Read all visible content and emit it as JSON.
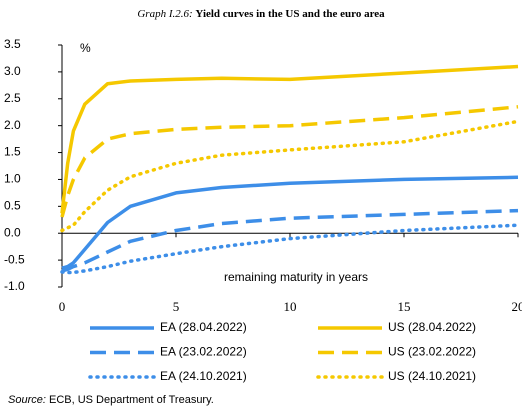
{
  "chart_data": {
    "type": "line",
    "title_label": "Graph I.2.6:",
    "title": "Yield curves in the US and the euro area",
    "y_unit": "%",
    "x_label": "remaining maturity in years",
    "source_label": "Source:",
    "source": "ECB, US Department of Treasury.",
    "x": [
      0,
      0.25,
      0.5,
      1,
      2,
      3,
      5,
      7,
      10,
      15,
      20
    ],
    "xlim": [
      0,
      20
    ],
    "xticks": [
      0,
      5,
      10,
      15,
      20
    ],
    "ylim": [
      -1,
      3.5
    ],
    "yticks": [
      {
        "value": -1,
        "label": "-1.0"
      },
      -0.5,
      {
        "value": 0,
        "label": "0.0"
      },
      0.5,
      {
        "value": 1,
        "label": "1.0"
      },
      1.5,
      {
        "value": 2,
        "label": "2.0"
      },
      2.5,
      {
        "value": 3,
        "label": "3.0"
      },
      3.5
    ],
    "grid": false,
    "series": [
      {
        "name": "EA (28.04.2022)",
        "color": "#3d8ee8",
        "dash": "solid",
        "values": [
          -0.65,
          -0.62,
          -0.55,
          -0.3,
          0.2,
          0.5,
          0.75,
          0.85,
          0.93,
          1.0,
          1.04
        ]
      },
      {
        "name": "US (28.04.2022)",
        "color": "#f5c800",
        "dash": "solid",
        "values": [
          0.37,
          1.3,
          1.9,
          2.4,
          2.78,
          2.83,
          2.86,
          2.88,
          2.86,
          2.98,
          3.1
        ]
      },
      {
        "name": "EA (23.02.2022)",
        "color": "#3d8ee8",
        "dash": "dashed",
        "values": [
          -0.7,
          -0.67,
          -0.62,
          -0.55,
          -0.35,
          -0.15,
          0.05,
          0.18,
          0.28,
          0.35,
          0.42
        ]
      },
      {
        "name": "US (23.02.2022)",
        "color": "#f5c800",
        "dash": "dashed",
        "values": [
          0.3,
          0.7,
          1.0,
          1.4,
          1.75,
          1.85,
          1.93,
          1.97,
          2.0,
          2.15,
          2.35
        ]
      },
      {
        "name": "EA (24.10.2021)",
        "color": "#3d8ee8",
        "dash": "dotted",
        "values": [
          -0.72,
          -0.73,
          -0.73,
          -0.7,
          -0.62,
          -0.52,
          -0.38,
          -0.25,
          -0.1,
          0.05,
          0.15
        ]
      },
      {
        "name": "US (24.10.2021)",
        "color": "#f5c800",
        "dash": "dotted",
        "values": [
          0.05,
          0.1,
          0.15,
          0.4,
          0.8,
          1.05,
          1.3,
          1.45,
          1.55,
          1.7,
          2.08
        ]
      }
    ]
  }
}
